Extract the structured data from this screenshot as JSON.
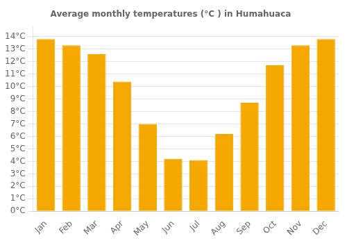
{
  "chart_data": {
    "type": "bar",
    "title": "Average monthly temperatures (°C ) in Humahuaca",
    "categories": [
      "Jan",
      "Feb",
      "Mar",
      "Apr",
      "May",
      "Jun",
      "Jul",
      "Aug",
      "Sep",
      "Oct",
      "Nov",
      "Dec"
    ],
    "values": [
      13.8,
      13.3,
      12.6,
      10.4,
      7.0,
      4.2,
      4.1,
      6.2,
      8.7,
      11.7,
      13.3,
      13.8
    ],
    "color": "#F5A800",
    "ylim": [
      0,
      14.8
    ],
    "yticks": [
      {
        "value": 0,
        "label": "0°C"
      },
      {
        "value": 1,
        "label": "1°C"
      },
      {
        "value": 2,
        "label": "2°C"
      },
      {
        "value": 3,
        "label": "3°C"
      },
      {
        "value": 4,
        "label": "4°C"
      },
      {
        "value": 5,
        "label": "5°C"
      },
      {
        "value": 6,
        "label": "6°C"
      },
      {
        "value": 7,
        "label": "7°C"
      },
      {
        "value": 8,
        "label": "8°C"
      },
      {
        "value": 9,
        "label": "9°C"
      },
      {
        "value": 10,
        "label": "10°C"
      },
      {
        "value": 11,
        "label": "11°C"
      },
      {
        "value": 12,
        "label": "12°C"
      },
      {
        "value": 13,
        "label": "13°C"
      },
      {
        "value": 14,
        "label": "14°C"
      }
    ],
    "grid": true
  }
}
